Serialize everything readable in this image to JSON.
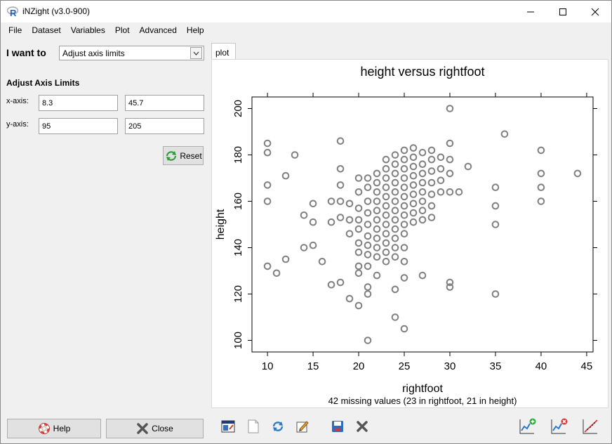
{
  "window": {
    "title": "iNZight (v3.0-900)",
    "app_icon": "r-logo-icon"
  },
  "menu": [
    "File",
    "Dataset",
    "Variables",
    "Plot",
    "Advanced",
    "Help"
  ],
  "left_panel": {
    "i_want_to_label": "I want to",
    "selected_action": "Adjust axis limits",
    "section_title": "Adjust Axis Limits",
    "x_axis_label": "x-axis:",
    "y_axis_label": "y-axis:",
    "x_min": "8.3",
    "x_max": "45.7",
    "y_min": "95",
    "y_max": "205",
    "reset_label": "Reset",
    "help_label": "Help",
    "close_label": "Close"
  },
  "tabs": [
    "plot"
  ],
  "toolbar_icons": [
    "new-window-icon",
    "new-document-icon",
    "refresh-icon",
    "edit-icon",
    "save-icon",
    "delete-icon",
    "add-plot-icon",
    "remove-plot-icon",
    "trend-line-icon"
  ],
  "chart_data": {
    "type": "scatter",
    "title": "height versus rightfoot",
    "xlabel": "rightfoot",
    "ylabel": "height",
    "subtitle": "42 missing values (23 in rightfoot, 21 in height)",
    "xlim": [
      8.3,
      45.7
    ],
    "ylim": [
      95,
      205
    ],
    "xticks": [
      10,
      15,
      20,
      25,
      30,
      35,
      40,
      45
    ],
    "yticks": [
      100,
      120,
      140,
      160,
      180,
      200
    ],
    "marker_color": "#808080",
    "points": [
      [
        10,
        185
      ],
      [
        10,
        181
      ],
      [
        10,
        167
      ],
      [
        10,
        160
      ],
      [
        10,
        132
      ],
      [
        11,
        129
      ],
      [
        12,
        171
      ],
      [
        12,
        135
      ],
      [
        13,
        180
      ],
      [
        14,
        154
      ],
      [
        14,
        140
      ],
      [
        15,
        159
      ],
      [
        15,
        151
      ],
      [
        15,
        141
      ],
      [
        16,
        134
      ],
      [
        17,
        160
      ],
      [
        17,
        151
      ],
      [
        17,
        124
      ],
      [
        18,
        186
      ],
      [
        18,
        174
      ],
      [
        18,
        167
      ],
      [
        18,
        160
      ],
      [
        18,
        153
      ],
      [
        18,
        125
      ],
      [
        19,
        159
      ],
      [
        19,
        152
      ],
      [
        19,
        146
      ],
      [
        19,
        118
      ],
      [
        20,
        170
      ],
      [
        20,
        164
      ],
      [
        20,
        157
      ],
      [
        20,
        152
      ],
      [
        20,
        148
      ],
      [
        20,
        142
      ],
      [
        20,
        138
      ],
      [
        20,
        132
      ],
      [
        20,
        129
      ],
      [
        20,
        115
      ],
      [
        21,
        170
      ],
      [
        21,
        166
      ],
      [
        21,
        160
      ],
      [
        21,
        155
      ],
      [
        21,
        150
      ],
      [
        21,
        145
      ],
      [
        21,
        141
      ],
      [
        21,
        137
      ],
      [
        21,
        132
      ],
      [
        21,
        123
      ],
      [
        21,
        120
      ],
      [
        21,
        100
      ],
      [
        22,
        172
      ],
      [
        22,
        168
      ],
      [
        22,
        164
      ],
      [
        22,
        160
      ],
      [
        22,
        156
      ],
      [
        22,
        152
      ],
      [
        22,
        148
      ],
      [
        22,
        144
      ],
      [
        22,
        140
      ],
      [
        22,
        136
      ],
      [
        22,
        128
      ],
      [
        23,
        178
      ],
      [
        23,
        174
      ],
      [
        23,
        170
      ],
      [
        23,
        166
      ],
      [
        23,
        162
      ],
      [
        23,
        158
      ],
      [
        23,
        154
      ],
      [
        23,
        150
      ],
      [
        23,
        146
      ],
      [
        23,
        142
      ],
      [
        23,
        138
      ],
      [
        23,
        134
      ],
      [
        24,
        180
      ],
      [
        24,
        176
      ],
      [
        24,
        172
      ],
      [
        24,
        168
      ],
      [
        24,
        164
      ],
      [
        24,
        160
      ],
      [
        24,
        156
      ],
      [
        24,
        152
      ],
      [
        24,
        148
      ],
      [
        24,
        144
      ],
      [
        24,
        140
      ],
      [
        24,
        136
      ],
      [
        24,
        122
      ],
      [
        24,
        110
      ],
      [
        25,
        182
      ],
      [
        25,
        178
      ],
      [
        25,
        174
      ],
      [
        25,
        170
      ],
      [
        25,
        166
      ],
      [
        25,
        162
      ],
      [
        25,
        158
      ],
      [
        25,
        154
      ],
      [
        25,
        150
      ],
      [
        25,
        146
      ],
      [
        25,
        140
      ],
      [
        25,
        134
      ],
      [
        25,
        127
      ],
      [
        25,
        105
      ],
      [
        26,
        183
      ],
      [
        26,
        179
      ],
      [
        26,
        175
      ],
      [
        26,
        171
      ],
      [
        26,
        167
      ],
      [
        26,
        163
      ],
      [
        26,
        159
      ],
      [
        26,
        155
      ],
      [
        26,
        151
      ],
      [
        27,
        181
      ],
      [
        27,
        176
      ],
      [
        27,
        172
      ],
      [
        27,
        168
      ],
      [
        27,
        164
      ],
      [
        27,
        160
      ],
      [
        27,
        156
      ],
      [
        27,
        152
      ],
      [
        27,
        128
      ],
      [
        28,
        182
      ],
      [
        28,
        178
      ],
      [
        28,
        173
      ],
      [
        28,
        168
      ],
      [
        28,
        163
      ],
      [
        28,
        158
      ],
      [
        28,
        153
      ],
      [
        29,
        179
      ],
      [
        29,
        174
      ],
      [
        29,
        169
      ],
      [
        29,
        164
      ],
      [
        30,
        200
      ],
      [
        30,
        185
      ],
      [
        30,
        178
      ],
      [
        30,
        172
      ],
      [
        30,
        164
      ],
      [
        30,
        125
      ],
      [
        30,
        123
      ],
      [
        31,
        164
      ],
      [
        32,
        175
      ],
      [
        35,
        166
      ],
      [
        35,
        158
      ],
      [
        35,
        150
      ],
      [
        35,
        120
      ],
      [
        36,
        189
      ],
      [
        40,
        182
      ],
      [
        40,
        172
      ],
      [
        40,
        166
      ],
      [
        40,
        160
      ],
      [
        44,
        172
      ]
    ]
  }
}
